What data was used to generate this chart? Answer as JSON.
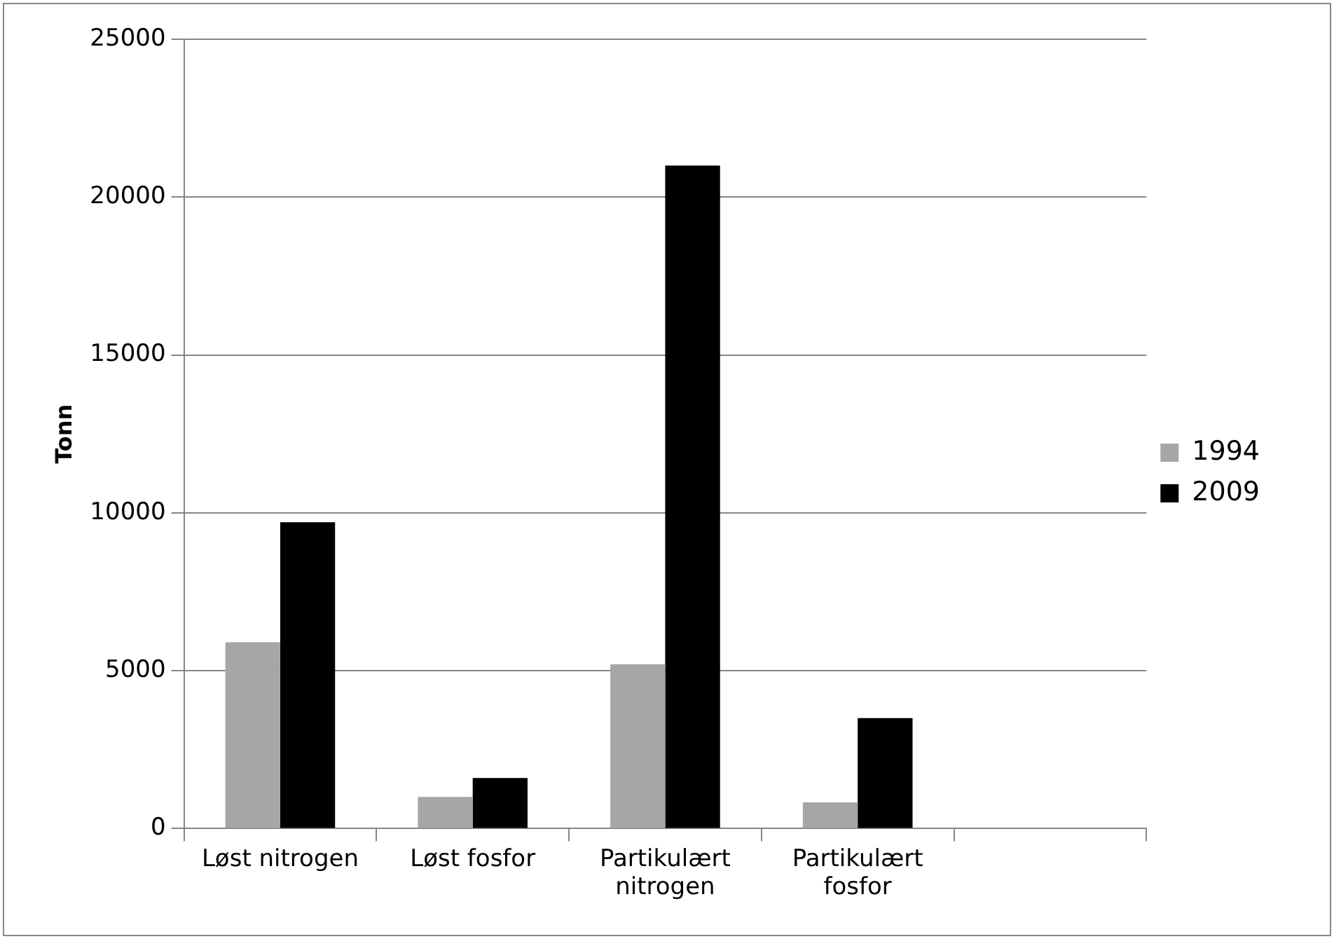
{
  "chart_data": {
    "type": "bar",
    "ylabel": "Tonn",
    "categories": [
      "Løst nitrogen",
      "Løst fosfor",
      "Partikulært nitrogen",
      "Partikulært fosfor",
      null
    ],
    "series": [
      {
        "name": "1994",
        "color": "#a6a6a6",
        "values": [
          5900,
          1000,
          5200,
          830,
          null
        ]
      },
      {
        "name": "2009",
        "color": "#000000",
        "values": [
          9700,
          1600,
          21000,
          3500,
          null
        ]
      }
    ],
    "ylim": [
      0,
      25000
    ],
    "yticks": [
      0,
      5000,
      10000,
      15000,
      20000,
      25000
    ],
    "grid": "y",
    "legend": "right"
  }
}
